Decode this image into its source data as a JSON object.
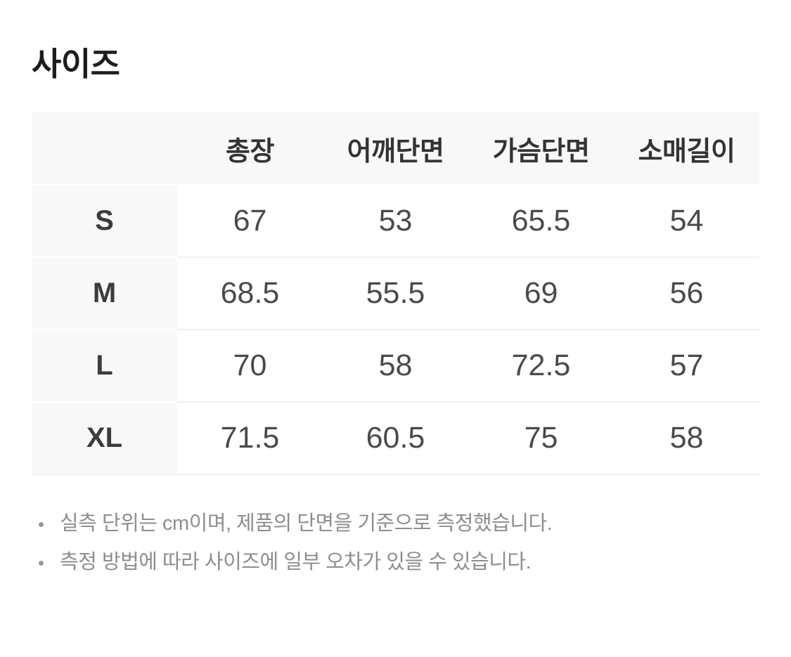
{
  "page": {
    "title": "사이즈"
  },
  "size_table": {
    "columns": [
      "총장",
      "어깨단면",
      "가슴단면",
      "소매길이"
    ],
    "rows": [
      {
        "size": "S",
        "values": [
          "67",
          "53",
          "65.5",
          "54"
        ]
      },
      {
        "size": "M",
        "values": [
          "68.5",
          "55.5",
          "69",
          "56"
        ]
      },
      {
        "size": "L",
        "values": [
          "70",
          "58",
          "72.5",
          "57"
        ]
      },
      {
        "size": "XL",
        "values": [
          "71.5",
          "60.5",
          "75",
          "58"
        ]
      }
    ]
  },
  "notes": {
    "items": [
      "실측 단위는 cm이며, 제품의 단면을 기준으로 측정했습니다.",
      "측정 방법에 따라 사이즈에 일부 오차가 있을 수 있습니다."
    ]
  },
  "colors": {
    "background": "#ffffff",
    "table_head_bg": "#f8f8f8",
    "row_divider": "#f1f1f1",
    "title_text": "#1c1c1c",
    "cell_text": "#4a4a4a",
    "note_text": "#8e8e8e"
  }
}
